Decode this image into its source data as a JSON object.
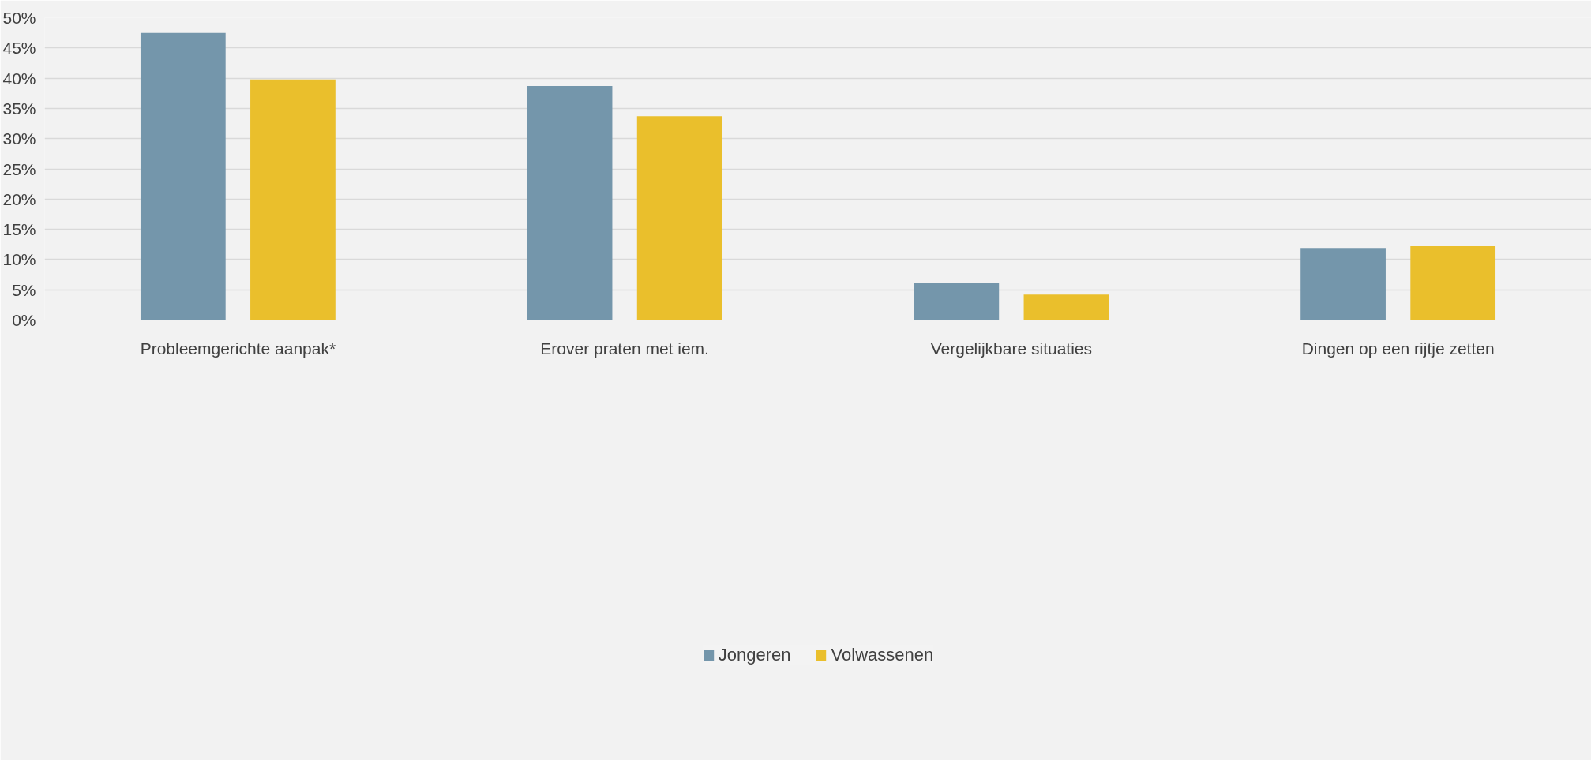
{
  "chart_data": {
    "type": "bar",
    "categories": [
      "Probleemgerichte aanpak*",
      "Erover praten met iem.",
      "Vergelijkbare situaties",
      "Dingen op een rijtje zetten"
    ],
    "series": [
      {
        "name": "Jongeren",
        "color": "#7496ab",
        "values": [
          47.5,
          38.7,
          6.2,
          11.9
        ]
      },
      {
        "name": "Volwassenen",
        "color": "#eabf2c",
        "values": [
          39.8,
          33.7,
          4.2,
          12.2
        ]
      }
    ],
    "ylim": [
      0,
      50
    ],
    "yticks": [
      {
        "value": 0,
        "label": "0%"
      },
      {
        "value": 5,
        "label": "5%"
      },
      {
        "value": 10,
        "label": "10%"
      },
      {
        "value": 15,
        "label": "15%"
      },
      {
        "value": 20,
        "label": "20%"
      },
      {
        "value": 25,
        "label": "25%"
      },
      {
        "value": 30,
        "label": "30%"
      },
      {
        "value": 35,
        "label": "35%"
      },
      {
        "value": 40,
        "label": "40%"
      },
      {
        "value": 45,
        "label": "45%"
      },
      {
        "value": 50,
        "label": "50%"
      }
    ],
    "grid": "y",
    "legend": "bottom"
  }
}
